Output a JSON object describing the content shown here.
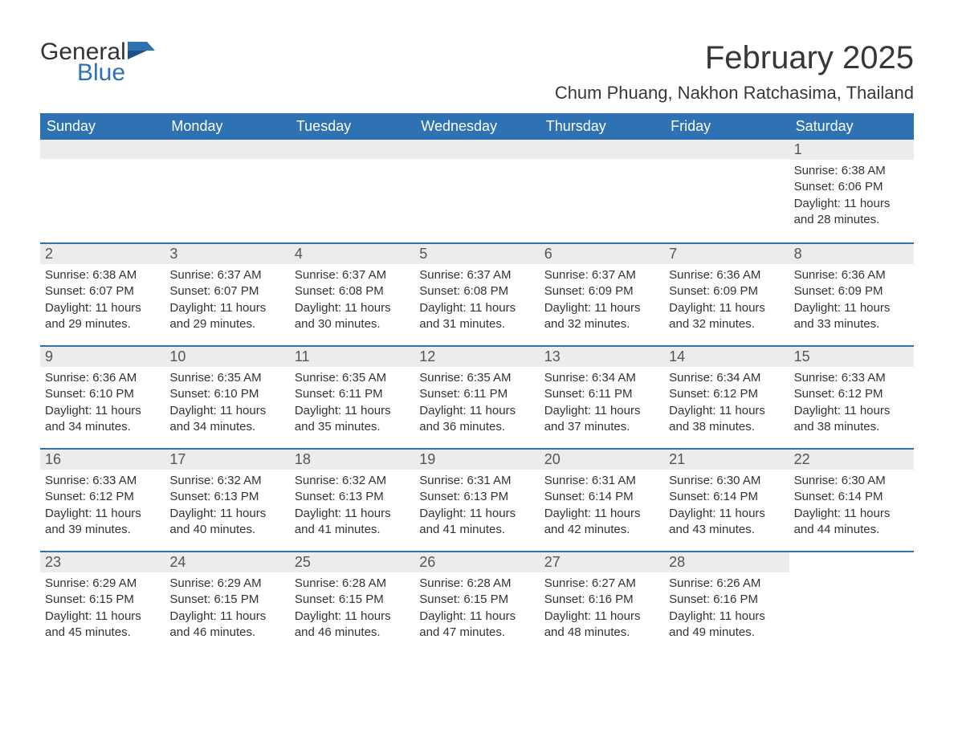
{
  "brand": {
    "name1": "General",
    "name2": "Blue"
  },
  "title": "February 2025",
  "location": "Chum Phuang, Nakhon Ratchasima, Thailand",
  "colors": {
    "header_bg": "#2e72b3",
    "header_text": "#ffffff",
    "strip_bg": "#ececec",
    "text": "#333333",
    "border": "#2e72b3",
    "brand_blue": "#2e72b3"
  },
  "typography": {
    "title_fontsize": 40,
    "location_fontsize": 22,
    "dow_fontsize": 18,
    "daynum_fontsize": 18,
    "body_fontsize": 15
  },
  "days_of_week": [
    "Sunday",
    "Monday",
    "Tuesday",
    "Wednesday",
    "Thursday",
    "Friday",
    "Saturday"
  ],
  "weeks": [
    [
      null,
      null,
      null,
      null,
      null,
      null,
      {
        "n": "1",
        "sunrise": "Sunrise: 6:38 AM",
        "sunset": "Sunset: 6:06 PM",
        "day1": "Daylight: 11 hours",
        "day2": "and 28 minutes."
      }
    ],
    [
      {
        "n": "2",
        "sunrise": "Sunrise: 6:38 AM",
        "sunset": "Sunset: 6:07 PM",
        "day1": "Daylight: 11 hours",
        "day2": "and 29 minutes."
      },
      {
        "n": "3",
        "sunrise": "Sunrise: 6:37 AM",
        "sunset": "Sunset: 6:07 PM",
        "day1": "Daylight: 11 hours",
        "day2": "and 29 minutes."
      },
      {
        "n": "4",
        "sunrise": "Sunrise: 6:37 AM",
        "sunset": "Sunset: 6:08 PM",
        "day1": "Daylight: 11 hours",
        "day2": "and 30 minutes."
      },
      {
        "n": "5",
        "sunrise": "Sunrise: 6:37 AM",
        "sunset": "Sunset: 6:08 PM",
        "day1": "Daylight: 11 hours",
        "day2": "and 31 minutes."
      },
      {
        "n": "6",
        "sunrise": "Sunrise: 6:37 AM",
        "sunset": "Sunset: 6:09 PM",
        "day1": "Daylight: 11 hours",
        "day2": "and 32 minutes."
      },
      {
        "n": "7",
        "sunrise": "Sunrise: 6:36 AM",
        "sunset": "Sunset: 6:09 PM",
        "day1": "Daylight: 11 hours",
        "day2": "and 32 minutes."
      },
      {
        "n": "8",
        "sunrise": "Sunrise: 6:36 AM",
        "sunset": "Sunset: 6:09 PM",
        "day1": "Daylight: 11 hours",
        "day2": "and 33 minutes."
      }
    ],
    [
      {
        "n": "9",
        "sunrise": "Sunrise: 6:36 AM",
        "sunset": "Sunset: 6:10 PM",
        "day1": "Daylight: 11 hours",
        "day2": "and 34 minutes."
      },
      {
        "n": "10",
        "sunrise": "Sunrise: 6:35 AM",
        "sunset": "Sunset: 6:10 PM",
        "day1": "Daylight: 11 hours",
        "day2": "and 34 minutes."
      },
      {
        "n": "11",
        "sunrise": "Sunrise: 6:35 AM",
        "sunset": "Sunset: 6:11 PM",
        "day1": "Daylight: 11 hours",
        "day2": "and 35 minutes."
      },
      {
        "n": "12",
        "sunrise": "Sunrise: 6:35 AM",
        "sunset": "Sunset: 6:11 PM",
        "day1": "Daylight: 11 hours",
        "day2": "and 36 minutes."
      },
      {
        "n": "13",
        "sunrise": "Sunrise: 6:34 AM",
        "sunset": "Sunset: 6:11 PM",
        "day1": "Daylight: 11 hours",
        "day2": "and 37 minutes."
      },
      {
        "n": "14",
        "sunrise": "Sunrise: 6:34 AM",
        "sunset": "Sunset: 6:12 PM",
        "day1": "Daylight: 11 hours",
        "day2": "and 38 minutes."
      },
      {
        "n": "15",
        "sunrise": "Sunrise: 6:33 AM",
        "sunset": "Sunset: 6:12 PM",
        "day1": "Daylight: 11 hours",
        "day2": "and 38 minutes."
      }
    ],
    [
      {
        "n": "16",
        "sunrise": "Sunrise: 6:33 AM",
        "sunset": "Sunset: 6:12 PM",
        "day1": "Daylight: 11 hours",
        "day2": "and 39 minutes."
      },
      {
        "n": "17",
        "sunrise": "Sunrise: 6:32 AM",
        "sunset": "Sunset: 6:13 PM",
        "day1": "Daylight: 11 hours",
        "day2": "and 40 minutes."
      },
      {
        "n": "18",
        "sunrise": "Sunrise: 6:32 AM",
        "sunset": "Sunset: 6:13 PM",
        "day1": "Daylight: 11 hours",
        "day2": "and 41 minutes."
      },
      {
        "n": "19",
        "sunrise": "Sunrise: 6:31 AM",
        "sunset": "Sunset: 6:13 PM",
        "day1": "Daylight: 11 hours",
        "day2": "and 41 minutes."
      },
      {
        "n": "20",
        "sunrise": "Sunrise: 6:31 AM",
        "sunset": "Sunset: 6:14 PM",
        "day1": "Daylight: 11 hours",
        "day2": "and 42 minutes."
      },
      {
        "n": "21",
        "sunrise": "Sunrise: 6:30 AM",
        "sunset": "Sunset: 6:14 PM",
        "day1": "Daylight: 11 hours",
        "day2": "and 43 minutes."
      },
      {
        "n": "22",
        "sunrise": "Sunrise: 6:30 AM",
        "sunset": "Sunset: 6:14 PM",
        "day1": "Daylight: 11 hours",
        "day2": "and 44 minutes."
      }
    ],
    [
      {
        "n": "23",
        "sunrise": "Sunrise: 6:29 AM",
        "sunset": "Sunset: 6:15 PM",
        "day1": "Daylight: 11 hours",
        "day2": "and 45 minutes."
      },
      {
        "n": "24",
        "sunrise": "Sunrise: 6:29 AM",
        "sunset": "Sunset: 6:15 PM",
        "day1": "Daylight: 11 hours",
        "day2": "and 46 minutes."
      },
      {
        "n": "25",
        "sunrise": "Sunrise: 6:28 AM",
        "sunset": "Sunset: 6:15 PM",
        "day1": "Daylight: 11 hours",
        "day2": "and 46 minutes."
      },
      {
        "n": "26",
        "sunrise": "Sunrise: 6:28 AM",
        "sunset": "Sunset: 6:15 PM",
        "day1": "Daylight: 11 hours",
        "day2": "and 47 minutes."
      },
      {
        "n": "27",
        "sunrise": "Sunrise: 6:27 AM",
        "sunset": "Sunset: 6:16 PM",
        "day1": "Daylight: 11 hours",
        "day2": "and 48 minutes."
      },
      {
        "n": "28",
        "sunrise": "Sunrise: 6:26 AM",
        "sunset": "Sunset: 6:16 PM",
        "day1": "Daylight: 11 hours",
        "day2": "and 49 minutes."
      },
      null
    ]
  ]
}
